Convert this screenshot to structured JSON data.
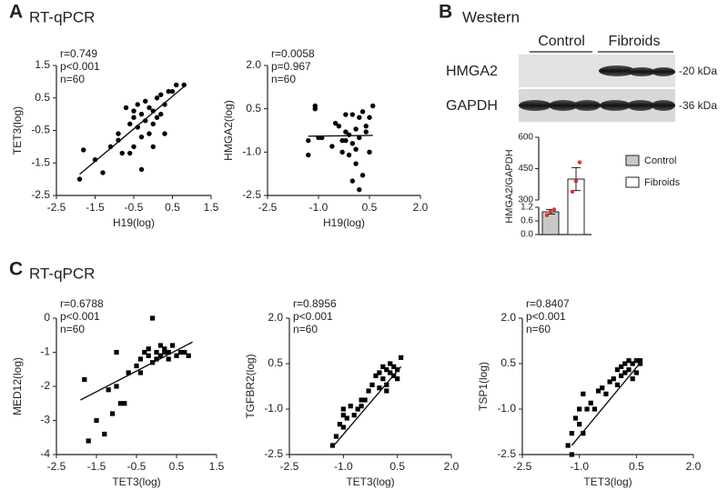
{
  "panel_labels": [
    "A",
    "B",
    "C"
  ],
  "section_titles": {
    "A": "RT-qPCR",
    "B": "Western",
    "C": "RT-qPCR"
  },
  "blot": {
    "groups": [
      "Control",
      "Fibroids"
    ],
    "rows": [
      "HMGA2",
      "GAPDH"
    ],
    "sizes": [
      "-20 kDa",
      "-36 kDa"
    ]
  },
  "chart_data": [
    {
      "type": "scatter",
      "marker": "circle",
      "color": "#000000",
      "annotations": [
        "r=0.749",
        "p<0.001",
        "n=60"
      ],
      "xlabel": "H19(log)",
      "ylabel": "TET3(log)",
      "x": [
        -1.9,
        -1.8,
        -1.5,
        -1.3,
        -1.1,
        -0.9,
        -0.8,
        -0.7,
        -0.6,
        -0.6,
        -0.5,
        -0.5,
        -0.4,
        -0.4,
        -0.3,
        -0.3,
        -0.2,
        -0.2,
        -0.1,
        -0.1,
        0.0,
        0.0,
        0.1,
        0.1,
        0.2,
        0.2,
        0.3,
        0.4,
        0.5,
        0.6,
        0.8,
        -0.9,
        -0.5,
        -0.3,
        0.0,
        0.3
      ],
      "y": [
        -2.0,
        -1.1,
        -1.4,
        -1.8,
        -1.0,
        -0.6,
        -1.2,
        0.2,
        -0.3,
        -1.2,
        -0.1,
        0.1,
        -0.4,
        0.3,
        -1.7,
        0.0,
        -0.2,
        0.4,
        -0.6,
        0.2,
        0.1,
        -0.3,
        0.5,
        -0.1,
        0.6,
        0.0,
        0.3,
        0.7,
        0.7,
        0.9,
        0.9,
        -0.8,
        -1.0,
        -0.7,
        -1.0,
        -0.6
      ],
      "fit": {
        "x": [
          -1.9,
          0.8
        ],
        "y": [
          -1.85,
          0.85
        ]
      },
      "xlim": [
        -2.5,
        1.5
      ],
      "xticks": [
        -2.5,
        -1.5,
        -0.5,
        0.5,
        1.5
      ],
      "ylim": [
        -2.5,
        1.5
      ],
      "yticks": [
        -2.5,
        -1.5,
        -0.5,
        0.5,
        1.5
      ]
    },
    {
      "type": "scatter",
      "marker": "circle",
      "color": "#000000",
      "annotations": [
        "r=0.0058",
        "p=0.967",
        "n=60"
      ],
      "xlabel": "H19(log)",
      "ylabel": "HMGA2(log)",
      "x": [
        -1.3,
        -1.3,
        -1.1,
        -1.1,
        -1.0,
        -0.9,
        -0.6,
        -0.5,
        -0.4,
        -0.3,
        -0.3,
        -0.2,
        -0.2,
        -0.1,
        -0.1,
        0.0,
        0.0,
        0.1,
        0.1,
        0.2,
        0.2,
        0.3,
        0.3,
        0.4,
        0.4,
        0.5,
        0.5,
        0.6,
        0.0,
        0.2,
        0.1,
        -0.2
      ],
      "y": [
        -0.6,
        -1.1,
        0.6,
        0.5,
        -0.5,
        -0.5,
        -0.8,
        0.0,
        -0.1,
        -1.0,
        -0.6,
        -0.3,
        0.3,
        -1.1,
        -0.4,
        0.3,
        -0.7,
        -0.2,
        -1.4,
        0.2,
        -0.5,
        0.4,
        -1.8,
        -0.1,
        -0.3,
        0.2,
        -1.0,
        0.6,
        -2.0,
        -2.3,
        -0.9,
        -0.6
      ],
      "fit": {
        "x": [
          -1.3,
          0.6
        ],
        "y": [
          -0.45,
          -0.42
        ]
      },
      "xlim": [
        -2.5,
        2.0
      ],
      "xticks": [
        -2.5,
        {
          "value": -1,
          "label": "-1.0"
        },
        0.5,
        {
          "value": 2,
          "label": "2.0"
        }
      ],
      "ylim": [
        -2.5,
        2.0
      ],
      "yticks": [
        -2.5,
        {
          "value": -1,
          "label": "-1.0"
        },
        0.5,
        {
          "value": 2,
          "label": "2.0"
        }
      ]
    },
    {
      "type": "bar",
      "ylabel": "HMGA2/GAPDH",
      "categories": [
        "Control",
        "Fibroids"
      ],
      "values": [
        1.0,
        400
      ],
      "errors": [
        0.1,
        55
      ],
      "points": [
        [
          0.85,
          1.0,
          1.1
        ],
        [
          340,
          390,
          480
        ]
      ],
      "colors": [
        "#c8c8c8",
        "#ffffff"
      ],
      "point_color": "#e0302f",
      "ylim": [
        0,
        600
      ],
      "ybreak": [
        1.2,
        300
      ],
      "yticks": [
        {
          "value": 0,
          "label": "0.0"
        },
        0.6,
        1.2,
        300,
        450,
        600
      ]
    },
    {
      "type": "scatter",
      "marker": "square",
      "color": "#000000",
      "annotations": [
        "r=0.6788",
        "p<0.001",
        "n=60"
      ],
      "xlabel": "TET3(log)",
      "ylabel": "MED12(log)",
      "x": [
        -1.8,
        -1.7,
        -1.5,
        -1.3,
        -1.2,
        -1.1,
        -1.0,
        -0.9,
        -0.8,
        -0.7,
        -0.5,
        -0.4,
        -0.3,
        -0.2,
        -0.2,
        -0.1,
        0.0,
        0.0,
        0.1,
        0.1,
        0.2,
        0.2,
        0.3,
        0.3,
        0.4,
        0.5,
        0.6,
        0.7,
        0.8,
        -1.0,
        -0.4,
        -0.1
      ],
      "y": [
        -1.8,
        -3.6,
        -3.0,
        -3.4,
        -2.1,
        -2.8,
        -1.0,
        -2.5,
        -2.5,
        -1.6,
        -1.4,
        -1.2,
        -1.0,
        -1.1,
        -0.9,
        -1.3,
        -1.0,
        -1.2,
        -0.8,
        -1.1,
        -1.0,
        -0.9,
        -1.2,
        -1.0,
        -0.8,
        -1.1,
        -1.0,
        -1.0,
        -1.1,
        -2.0,
        -1.6,
        0.0
      ],
      "fit": {
        "x": [
          -1.9,
          0.9
        ],
        "y": [
          -2.4,
          -0.7
        ]
      },
      "xlim": [
        -2.5,
        1.5
      ],
      "xticks": [
        -2.5,
        -1.5,
        -0.5,
        0.5,
        1.5
      ],
      "ylim": [
        -4,
        0
      ],
      "yticks": [
        -4,
        -3,
        -2,
        -1,
        0
      ]
    },
    {
      "type": "scatter",
      "marker": "square",
      "color": "#000000",
      "annotations": [
        "r=0.8956",
        "p<0.001",
        "n=60"
      ],
      "xlabel": "TET3(log)",
      "ylabel": "TGFBR2(log)",
      "x": [
        -1.3,
        -1.2,
        -1.1,
        -1.0,
        -1.0,
        -0.9,
        -0.8,
        -0.7,
        -0.6,
        -0.5,
        -0.4,
        -0.3,
        -0.2,
        -0.1,
        0.0,
        0.0,
        0.1,
        0.1,
        0.2,
        0.2,
        0.3,
        0.3,
        0.4,
        0.4,
        0.5,
        0.5,
        0.6,
        -1.0,
        -0.5,
        0.2
      ],
      "y": [
        -2.2,
        -1.9,
        -1.5,
        -1.0,
        -1.2,
        -1.3,
        -0.9,
        -1.2,
        -1.0,
        -0.7,
        -0.7,
        -0.4,
        -0.2,
        0.1,
        -0.3,
        0.2,
        0.0,
        0.4,
        -0.2,
        0.3,
        0.2,
        0.5,
        0.1,
        0.4,
        0.0,
        0.3,
        0.7,
        -1.6,
        -0.9,
        -0.4
      ],
      "fit": {
        "x": [
          -1.3,
          0.6
        ],
        "y": [
          -2.25,
          0.4
        ]
      },
      "xlim": [
        -2.5,
        2.0
      ],
      "xticks": [
        -2.5,
        {
          "value": -1,
          "label": "-1.0"
        },
        0.5,
        {
          "value": 2,
          "label": "2.0"
        }
      ],
      "ylim": [
        -2.5,
        2.0
      ],
      "yticks": [
        -2.5,
        {
          "value": -1,
          "label": "-1.0"
        },
        0.5,
        {
          "value": 2,
          "label": "2.0"
        }
      ]
    },
    {
      "type": "scatter",
      "marker": "square",
      "color": "#000000",
      "annotations": [
        "r=0.8407",
        "p<0.001",
        "n=60"
      ],
      "xlabel": "TET3(log)",
      "ylabel": "TSP1(log)",
      "x": [
        -1.3,
        -1.2,
        -1.1,
        -1.0,
        -1.0,
        -0.9,
        -0.8,
        -0.7,
        -0.6,
        -0.5,
        -0.4,
        -0.3,
        -0.2,
        -0.1,
        0.0,
        0.0,
        0.1,
        0.1,
        0.2,
        0.2,
        0.3,
        0.3,
        0.4,
        0.4,
        0.5,
        0.5,
        0.6,
        0.6,
        -1.2,
        -0.9
      ],
      "y": [
        -2.2,
        -2.5,
        -1.3,
        -1.0,
        -1.5,
        -1.8,
        -1.0,
        -0.8,
        -1.0,
        -0.4,
        -0.3,
        -0.5,
        -0.1,
        0.0,
        0.3,
        -0.2,
        0.4,
        0.1,
        0.5,
        0.2,
        0.6,
        0.3,
        0.5,
        0.0,
        0.6,
        0.2,
        0.6,
        0.5,
        -1.8,
        -0.5
      ],
      "fit": {
        "x": [
          -1.2,
          0.65
        ],
        "y": [
          -2.2,
          0.6
        ]
      },
      "xlim": [
        -2.5,
        2.0
      ],
      "xticks": [
        -2.5,
        {
          "value": -1,
          "label": "-1.0"
        },
        0.5,
        {
          "value": 2,
          "label": "2.0"
        }
      ],
      "ylim": [
        -2.5,
        2.0
      ],
      "yticks": [
        -2.5,
        {
          "value": -1,
          "label": "-1.0"
        },
        0.5,
        {
          "value": 2,
          "label": "2.0"
        }
      ]
    }
  ]
}
